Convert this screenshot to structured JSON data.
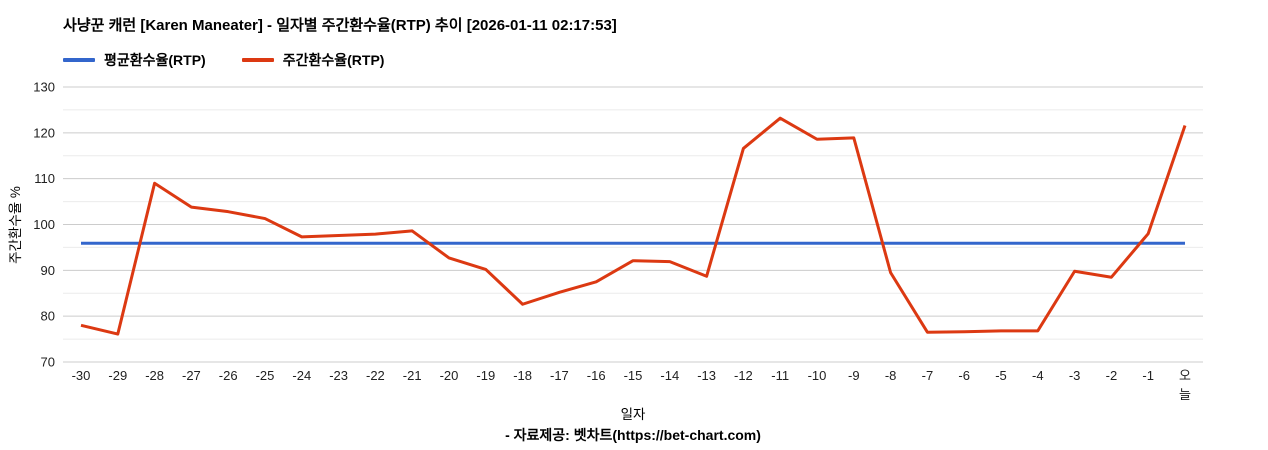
{
  "footer": "- 자료제공: 벳차트(https://bet-chart.com)",
  "chart_data": {
    "type": "line",
    "title": "사냥꾼 캐런 [Karen Maneater] - 일자별 주간환수율(RTP) 추이 [2026-01-11 02:17:53]",
    "xlabel": "일자",
    "ylabel": "주간환수율 %",
    "ylim": [
      70,
      130
    ],
    "ytick_step": 10,
    "yminor_step": 5,
    "grid": true,
    "legend_position": "top",
    "colors": {
      "average_line": "#3366cc",
      "weekly_line": "#dc3912",
      "major_grid": "#cccccc",
      "minor_grid": "#ebebeb",
      "tick_text": "#212121"
    },
    "categories": [
      "-30",
      "-29",
      "-28",
      "-27",
      "-26",
      "-25",
      "-24",
      "-23",
      "-22",
      "-21",
      "-20",
      "-19",
      "-18",
      "-17",
      "-16",
      "-15",
      "-14",
      "-13",
      "-12",
      "-11",
      "-10",
      "-9",
      "-8",
      "-7",
      "-6",
      "-5",
      "-4",
      "-3",
      "-2",
      "-1",
      "오늘"
    ],
    "series": [
      {
        "name": "평균환수율(RTP)",
        "color": "#3366cc",
        "type": "constant",
        "value": 95.9
      },
      {
        "name": "주간환수율(RTP)",
        "color": "#dc3912",
        "type": "line",
        "values": [
          78,
          76.1,
          109,
          103.8,
          102.8,
          101.3,
          97.3,
          97.6,
          97.9,
          98.6,
          92.7,
          90.2,
          82.6,
          85.2,
          87.5,
          92.1,
          91.9,
          88.7,
          116.6,
          123.2,
          118.6,
          118.9,
          89.5,
          76.5,
          76.6,
          76.8,
          76.8,
          89.8,
          88.5,
          98,
          121.6
        ]
      }
    ]
  }
}
